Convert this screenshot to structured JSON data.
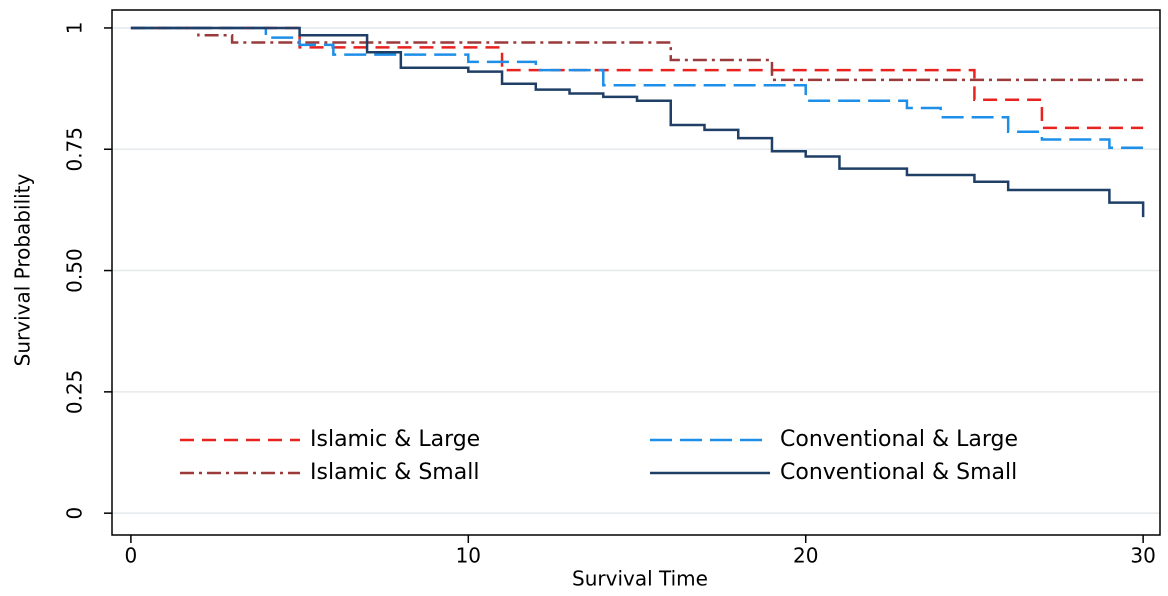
{
  "chart_data": {
    "type": "step-line",
    "xlabel": "Survival Time",
    "ylabel": "Survival Probability",
    "xlim": [
      -0.56,
      30.5
    ],
    "ylim": [
      -0.045,
      1.037
    ],
    "xticks": [
      0,
      10,
      20,
      30
    ],
    "yticks": [
      0,
      0.25,
      {
        "value": 0.5,
        "label": "0.50"
      },
      0.75,
      1
    ],
    "grid": true,
    "legend": "lower left",
    "series": [
      {
        "name": "Islamic & Large",
        "color": "#e8231f",
        "dash": "dashed",
        "x": [
          0,
          5,
          5,
          11,
          11,
          25,
          25,
          27,
          27,
          30
        ],
        "values": [
          1,
          1,
          0.96,
          0.96,
          0.913,
          0.913,
          0.852,
          0.852,
          0.794,
          0.794
        ]
      },
      {
        "name": "Islamic & Small",
        "color": "#9b3a3a",
        "dash": "dashdot",
        "x": [
          0,
          2,
          2,
          3,
          3,
          16,
          16,
          19,
          19,
          30
        ],
        "values": [
          1,
          1,
          0.985,
          0.985,
          0.97,
          0.97,
          0.934,
          0.934,
          0.893,
          0.893
        ]
      },
      {
        "name": "Conventional & Large",
        "color": "#1e8fe8",
        "dash": "longdash",
        "x": [
          0,
          4,
          4,
          5,
          5,
          6,
          6,
          10,
          10,
          12,
          12,
          14,
          14,
          20,
          20,
          23,
          23,
          24,
          24,
          26,
          26,
          27,
          27,
          29,
          29,
          30,
          30
        ],
        "values": [
          1,
          1,
          0.98,
          0.98,
          0.965,
          0.965,
          0.945,
          0.945,
          0.93,
          0.93,
          0.913,
          0.913,
          0.882,
          0.882,
          0.85,
          0.85,
          0.835,
          0.835,
          0.816,
          0.816,
          0.786,
          0.786,
          0.77,
          0.77,
          0.753,
          0.753,
          0.737
        ]
      },
      {
        "name": "Conventional & Small",
        "color": "#1f3f66",
        "dash": "solid",
        "x": [
          0,
          5,
          5,
          7,
          7,
          8,
          8,
          10,
          10,
          11,
          11,
          12,
          12,
          13,
          13,
          14,
          14,
          15,
          15,
          16,
          16,
          17,
          17,
          18,
          18,
          19,
          19,
          20,
          20,
          21,
          21,
          23,
          23,
          25,
          25,
          26,
          26,
          29,
          29,
          30,
          30
        ],
        "values": [
          1,
          1,
          0.985,
          0.985,
          0.95,
          0.95,
          0.918,
          0.918,
          0.91,
          0.91,
          0.885,
          0.885,
          0.873,
          0.873,
          0.865,
          0.865,
          0.858,
          0.858,
          0.85,
          0.85,
          0.8,
          0.8,
          0.79,
          0.79,
          0.773,
          0.773,
          0.746,
          0.746,
          0.735,
          0.735,
          0.71,
          0.71,
          0.697,
          0.697,
          0.683,
          0.683,
          0.666,
          0.666,
          0.64,
          0.64,
          0.61
        ]
      }
    ]
  }
}
